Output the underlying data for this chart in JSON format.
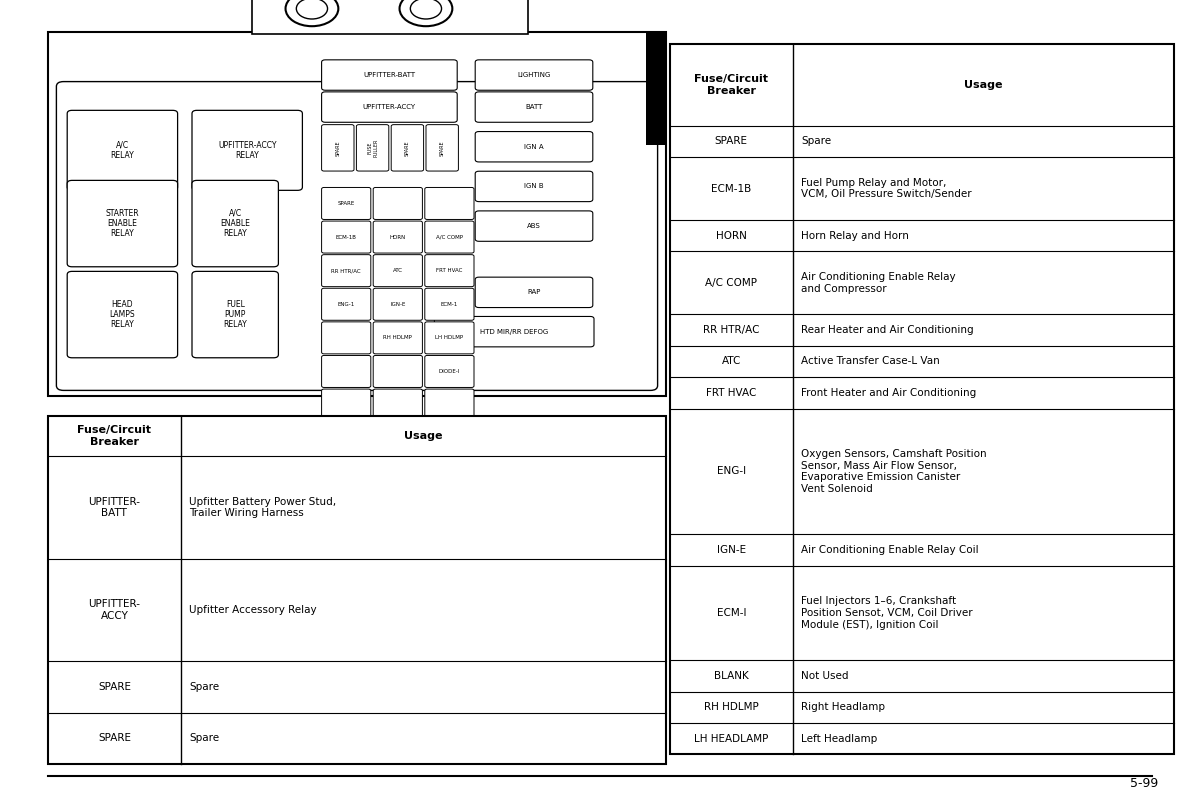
{
  "bg_color": "#ffffff",
  "page_number": "5-99",
  "table_left_rows": [
    [
      "UPFITTER-\nBATT",
      "Upfitter Battery Power Stud,\nTrailer Wiring Harness"
    ],
    [
      "UPFITTER-\nACCY",
      "Upfitter Accessory Relay"
    ],
    [
      "SPARE",
      "Spare"
    ],
    [
      "SPARE",
      "Spare"
    ]
  ],
  "table_right_rows": [
    [
      "SPARE",
      "Spare"
    ],
    [
      "ECM-1B",
      "Fuel Pump Relay and Motor,\nVCM, Oil Pressure Switch/Sender"
    ],
    [
      "HORN",
      "Horn Relay and Horn"
    ],
    [
      "A/C COMP",
      "Air Conditioning Enable Relay\nand Compressor"
    ],
    [
      "RR HTR/AC",
      "Rear Heater and Air Conditioning"
    ],
    [
      "ATC",
      "Active Transfer Case-L Van"
    ],
    [
      "FRT HVAC",
      "Front Heater and Air Conditioning"
    ],
    [
      "ENG-I",
      "Oxygen Sensors, Camshaft Position\nSensor, Mass Air Flow Sensor,\nEvaporative Emission Canister\nVent Solenoid"
    ],
    [
      "IGN-E",
      "Air Conditioning Enable Relay Coil"
    ],
    [
      "ECM-I",
      "Fuel Injectors 1–6, Crankshaft\nPosition Sensot, VCM, Coil Driver\nModule (EST), Ignition Coil"
    ],
    [
      "BLANK",
      "Not Used"
    ],
    [
      "RH HDLMP",
      "Right Headlamp"
    ],
    [
      "LH HEADLAMP",
      "Left Headlamp"
    ]
  ]
}
